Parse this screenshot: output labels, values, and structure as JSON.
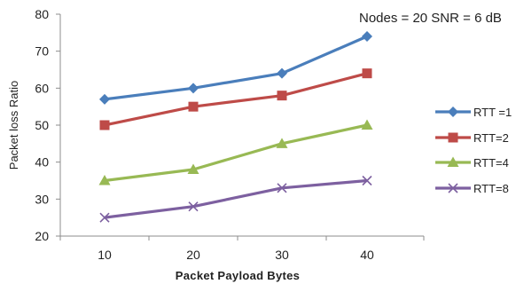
{
  "chart_data": {
    "type": "line",
    "title": "",
    "annotation": "Nodes = 20  SNR = 6 dB",
    "xlabel": "Packet Payload Bytes",
    "ylabel": "Packet loss Ratio",
    "x": [
      10,
      20,
      30,
      40
    ],
    "x_tick_labels": [
      "10",
      "20",
      "30",
      "40"
    ],
    "ylim": [
      20,
      80
    ],
    "y_ticks": [
      20,
      30,
      40,
      50,
      60,
      70,
      80
    ],
    "grid": false,
    "legend_position": "right",
    "series": [
      {
        "name": "RTT =1",
        "values": [
          57,
          60,
          64,
          74
        ],
        "color": "#4a7ebb",
        "marker": "diamond"
      },
      {
        "name": "RTT=2",
        "values": [
          50,
          55,
          58,
          64
        ],
        "color": "#be4b48",
        "marker": "square"
      },
      {
        "name": "RTT=4",
        "values": [
          35,
          38,
          45,
          50
        ],
        "color": "#98b954",
        "marker": "triangle"
      },
      {
        "name": "RTT=8",
        "values": [
          25,
          28,
          33,
          35
        ],
        "color": "#7d60a0",
        "marker": "x"
      }
    ]
  }
}
